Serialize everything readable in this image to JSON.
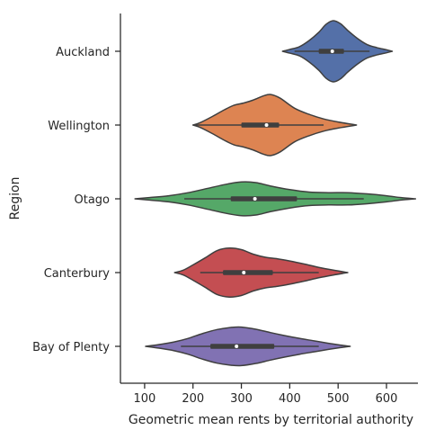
{
  "chart_data": {
    "type": "violin",
    "orientation": "horizontal",
    "title": "",
    "xlabel": "Geometric mean rents by territorial authority",
    "ylabel": "Region",
    "xlim": [
      50,
      665
    ],
    "xticks": [
      100,
      200,
      300,
      400,
      500,
      600
    ],
    "grid": false,
    "legend": "none",
    "categories": [
      "Auckland",
      "Wellington",
      "Otago",
      "Canterbury",
      "Bay of Plenty"
    ],
    "series": [
      {
        "category": "Auckland",
        "color": "#5470a8",
        "min": 385,
        "q1": 460,
        "median": 488,
        "q3": 512,
        "max": 612,
        "whisker_low": 410,
        "whisker_high": 565,
        "density": [
          [
            385,
            0.0
          ],
          [
            400,
            0.06
          ],
          [
            420,
            0.15
          ],
          [
            440,
            0.35
          ],
          [
            460,
            0.62
          ],
          [
            475,
            0.88
          ],
          [
            490,
            1.0
          ],
          [
            505,
            0.9
          ],
          [
            520,
            0.68
          ],
          [
            540,
            0.42
          ],
          [
            560,
            0.22
          ],
          [
            580,
            0.12
          ],
          [
            600,
            0.05
          ],
          [
            612,
            0.0
          ]
        ]
      },
      {
        "category": "Wellington",
        "color": "#dd8452",
        "min": 200,
        "q1": 300,
        "median": 352,
        "q3": 378,
        "max": 538,
        "whisker_low": 205,
        "whisker_high": 470,
        "density": [
          [
            200,
            0.0
          ],
          [
            215,
            0.08
          ],
          [
            240,
            0.28
          ],
          [
            265,
            0.5
          ],
          [
            285,
            0.65
          ],
          [
            305,
            0.72
          ],
          [
            325,
            0.82
          ],
          [
            345,
            0.95
          ],
          [
            360,
            1.0
          ],
          [
            380,
            0.88
          ],
          [
            410,
            0.55
          ],
          [
            440,
            0.35
          ],
          [
            470,
            0.2
          ],
          [
            500,
            0.1
          ],
          [
            538,
            0.0
          ]
        ]
      },
      {
        "category": "Otago",
        "color": "#55a868",
        "min": 80,
        "q1": 278,
        "median": 328,
        "q3": 415,
        "max": 660,
        "whisker_low": 182,
        "whisker_high": 553,
        "density": [
          [
            80,
            0.0
          ],
          [
            110,
            0.04
          ],
          [
            150,
            0.1
          ],
          [
            190,
            0.2
          ],
          [
            230,
            0.34
          ],
          [
            270,
            0.48
          ],
          [
            300,
            0.55
          ],
          [
            330,
            0.53
          ],
          [
            360,
            0.42
          ],
          [
            400,
            0.3
          ],
          [
            440,
            0.22
          ],
          [
            480,
            0.2
          ],
          [
            520,
            0.2
          ],
          [
            560,
            0.16
          ],
          [
            600,
            0.1
          ],
          [
            630,
            0.04
          ],
          [
            660,
            0.0
          ]
        ]
      },
      {
        "category": "Canterbury",
        "color": "#c44e52",
        "min": 162,
        "q1": 262,
        "median": 305,
        "q3": 365,
        "max": 520,
        "whisker_low": 215,
        "whisker_high": 460,
        "density": [
          [
            162,
            0.0
          ],
          [
            180,
            0.08
          ],
          [
            200,
            0.25
          ],
          [
            225,
            0.48
          ],
          [
            250,
            0.72
          ],
          [
            275,
            0.8
          ],
          [
            300,
            0.75
          ],
          [
            325,
            0.6
          ],
          [
            350,
            0.5
          ],
          [
            375,
            0.45
          ],
          [
            400,
            0.38
          ],
          [
            430,
            0.28
          ],
          [
            460,
            0.17
          ],
          [
            490,
            0.08
          ],
          [
            520,
            0.0
          ]
        ]
      },
      {
        "category": "Bay of Plenty",
        "color": "#8172b3",
        "min": 102,
        "q1": 236,
        "median": 290,
        "q3": 368,
        "max": 525,
        "whisker_low": 175,
        "whisker_high": 460,
        "density": [
          [
            102,
            0.0
          ],
          [
            130,
            0.06
          ],
          [
            160,
            0.14
          ],
          [
            190,
            0.26
          ],
          [
            220,
            0.42
          ],
          [
            250,
            0.55
          ],
          [
            280,
            0.62
          ],
          [
            300,
            0.63
          ],
          [
            330,
            0.56
          ],
          [
            360,
            0.45
          ],
          [
            390,
            0.35
          ],
          [
            420,
            0.26
          ],
          [
            450,
            0.18
          ],
          [
            480,
            0.1
          ],
          [
            505,
            0.04
          ],
          [
            525,
            0.0
          ]
        ]
      }
    ]
  }
}
